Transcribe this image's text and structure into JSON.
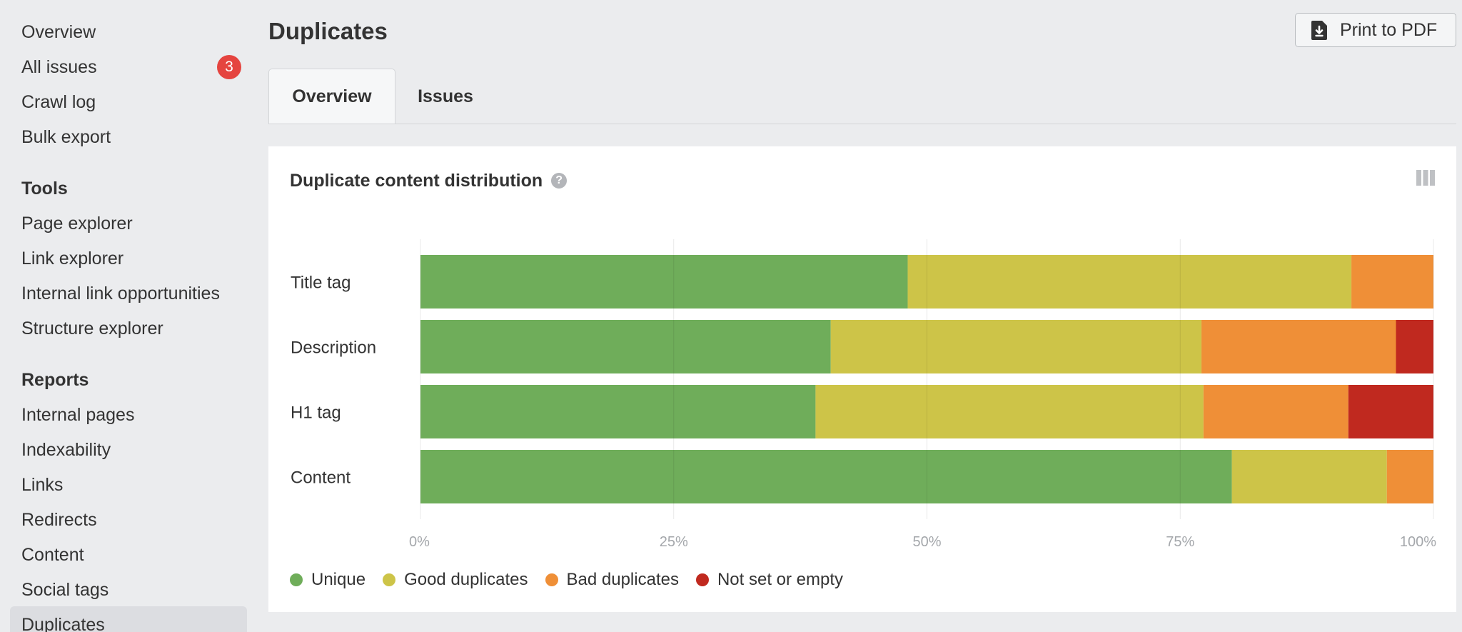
{
  "sidebar": {
    "items_top": [
      {
        "label": "Overview",
        "name": "sidebar-item-overview",
        "top": 30
      },
      {
        "label": "All issues",
        "name": "sidebar-item-all-issues",
        "top": 79,
        "badge": "3"
      },
      {
        "label": "Crawl log",
        "name": "sidebar-item-crawl-log",
        "top": 128
      },
      {
        "label": "Bulk export",
        "name": "sidebar-item-bulk-export",
        "top": 177
      }
    ],
    "tools_heading": "Tools",
    "tools": [
      {
        "label": "Page explorer",
        "name": "sidebar-item-page-explorer"
      },
      {
        "label": "Link explorer",
        "name": "sidebar-item-link-explorer"
      },
      {
        "label": "Internal link opportunities",
        "name": "sidebar-item-internal-link-opportunities"
      },
      {
        "label": "Structure explorer",
        "name": "sidebar-item-structure-explorer"
      }
    ],
    "reports_heading": "Reports",
    "reports": [
      {
        "label": "Internal pages",
        "name": "sidebar-item-internal-pages"
      },
      {
        "label": "Indexability",
        "name": "sidebar-item-indexability"
      },
      {
        "label": "Links",
        "name": "sidebar-item-links"
      },
      {
        "label": "Redirects",
        "name": "sidebar-item-redirects"
      },
      {
        "label": "Content",
        "name": "sidebar-item-content"
      },
      {
        "label": "Social tags",
        "name": "sidebar-item-social-tags"
      },
      {
        "label": "Duplicates",
        "name": "sidebar-item-duplicates"
      }
    ]
  },
  "header": {
    "title": "Duplicates",
    "print_label": "Print to PDF"
  },
  "tabs": [
    {
      "label": "Overview",
      "active": true
    },
    {
      "label": "Issues",
      "active": false
    }
  ],
  "card": {
    "title": "Duplicate content distribution",
    "help_icon": "?"
  },
  "colors": {
    "unique": "#6fad5a",
    "good": "#cdc448",
    "bad": "#ef8f37",
    "empty": "#c0291f"
  },
  "chart_data": {
    "type": "bar",
    "orientation": "horizontal",
    "stacked": true,
    "normalized": true,
    "categories": [
      "Title tag",
      "Description",
      "H1 tag",
      "Content"
    ],
    "series": [
      {
        "name": "Unique",
        "values": [
          48.1,
          40.5,
          39.0,
          80.1
        ]
      },
      {
        "name": "Good duplicates",
        "values": [
          43.8,
          36.6,
          38.3,
          15.3
        ]
      },
      {
        "name": "Bad duplicates",
        "values": [
          8.1,
          19.2,
          14.3,
          4.6
        ]
      },
      {
        "name": "Not set or empty",
        "values": [
          0,
          3.7,
          8.4,
          0
        ]
      }
    ],
    "xticks": [
      "0%",
      "25%",
      "50%",
      "75%",
      "100%"
    ],
    "xlim": [
      0,
      100
    ],
    "grid": true,
    "legend_position": "bottom-left"
  }
}
